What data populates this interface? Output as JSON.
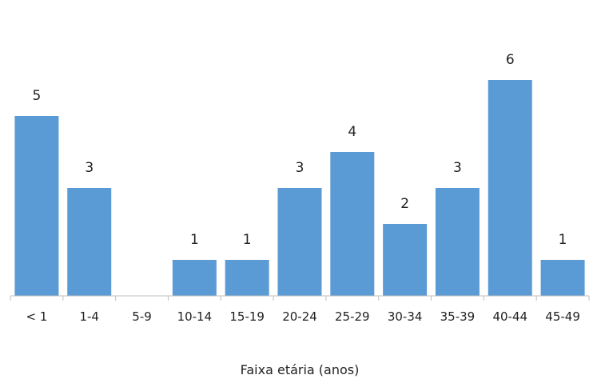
{
  "chart_data": {
    "type": "bar",
    "title": "",
    "xlabel": "Faixa etária (anos)",
    "ylabel": "",
    "categories": [
      "< 1",
      "1-4",
      "5-9",
      "10-14",
      "15-19",
      "20-24",
      "25-29",
      "30-34",
      "35-39",
      "40-44",
      "45-49"
    ],
    "values": [
      5,
      3,
      0,
      1,
      1,
      3,
      4,
      2,
      3,
      6,
      1
    ],
    "data_labels": [
      "5",
      "3",
      "",
      "1",
      "1",
      "3",
      "4",
      "2",
      "3",
      "6",
      "1"
    ],
    "ylim": [
      0,
      6
    ],
    "grid": false,
    "legend": "none",
    "bar_color": "#5B9BD5",
    "axis_color": "#BFBFBF"
  }
}
